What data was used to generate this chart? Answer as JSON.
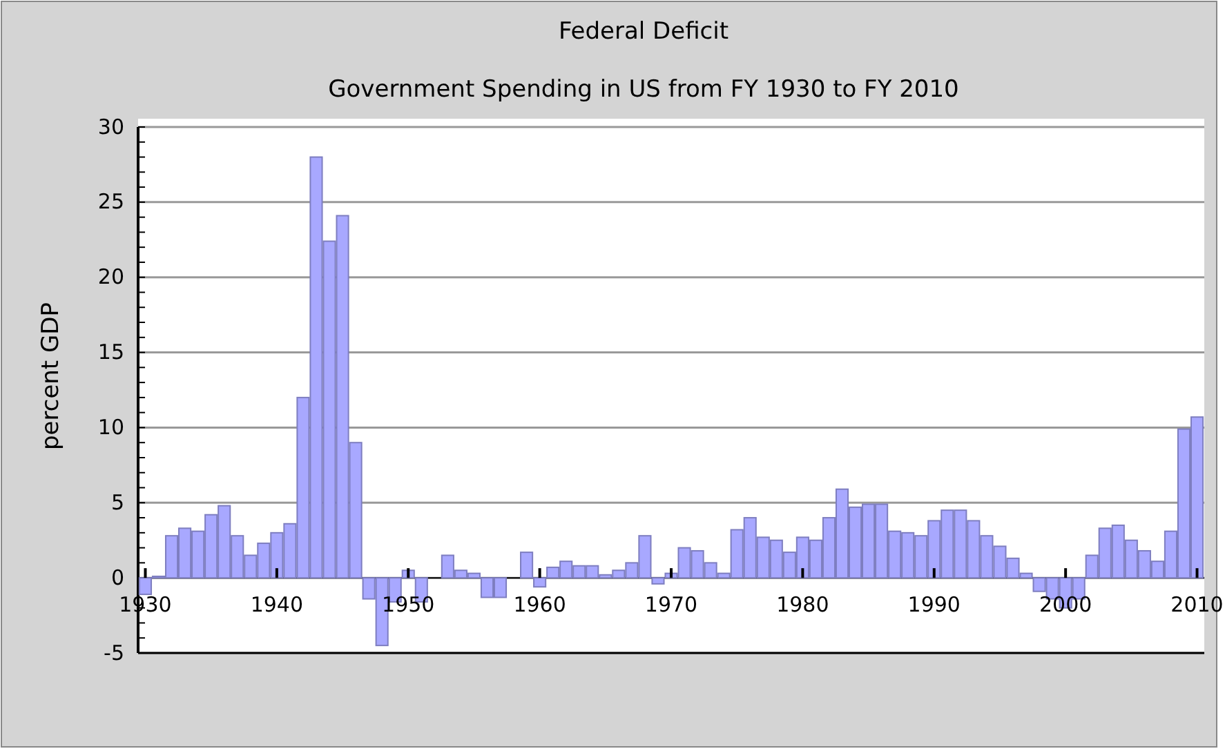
{
  "chart_data": {
    "type": "bar",
    "title": "Federal Deficit",
    "subtitle": "Government Spending in US from FY 1930 to FY 2010",
    "ylabel": "percent GDP",
    "categories": [
      "1930",
      null,
      null,
      null,
      null,
      null,
      null,
      null,
      null,
      null,
      "1940",
      null,
      null,
      null,
      null,
      null,
      null,
      null,
      null,
      null,
      "1950",
      null,
      null,
      null,
      null,
      null,
      null,
      null,
      null,
      null,
      "1960",
      null,
      null,
      null,
      null,
      null,
      null,
      null,
      null,
      null,
      "1970",
      null,
      null,
      null,
      null,
      null,
      null,
      null,
      null,
      null,
      "1980",
      null,
      null,
      null,
      null,
      null,
      null,
      null,
      null,
      null,
      "1990",
      null,
      null,
      null,
      null,
      null,
      null,
      null,
      null,
      null,
      "2000",
      null,
      null,
      null,
      null,
      null,
      null,
      null,
      null,
      null,
      "2010"
    ],
    "values": [
      -1.1,
      0.1,
      2.8,
      3.3,
      3.1,
      4.2,
      4.8,
      2.8,
      1.5,
      2.3,
      3.0,
      3.6,
      12.0,
      28.0,
      22.4,
      24.1,
      9.0,
      -1.4,
      -4.5,
      -1.6,
      0.5,
      -1.6,
      0,
      1.5,
      0.5,
      0.3,
      -1.3,
      -1.3,
      0,
      1.7,
      -0.6,
      0.7,
      1.1,
      0.8,
      0.8,
      0.2,
      0.5,
      1.0,
      2.8,
      -0.4,
      0.3,
      2.0,
      1.8,
      1.0,
      0.3,
      3.2,
      4.0,
      2.7,
      2.5,
      1.7,
      2.7,
      2.5,
      4.0,
      5.9,
      4.7,
      4.9,
      4.9,
      3.1,
      3.0,
      2.8,
      3.8,
      4.5,
      4.5,
      3.8,
      2.8,
      2.1,
      1.3,
      0.3,
      -0.9,
      -1.4,
      -2.0,
      -1.4,
      1.5,
      3.3,
      3.5,
      2.5,
      1.8,
      1.1,
      3.1,
      9.9,
      10.7
    ],
    "color": "#a8a8ff",
    "ylim": [
      -5,
      30
    ],
    "yticks": [
      -5,
      0,
      5,
      10,
      15,
      20,
      25,
      30
    ],
    "grid": "y"
  }
}
